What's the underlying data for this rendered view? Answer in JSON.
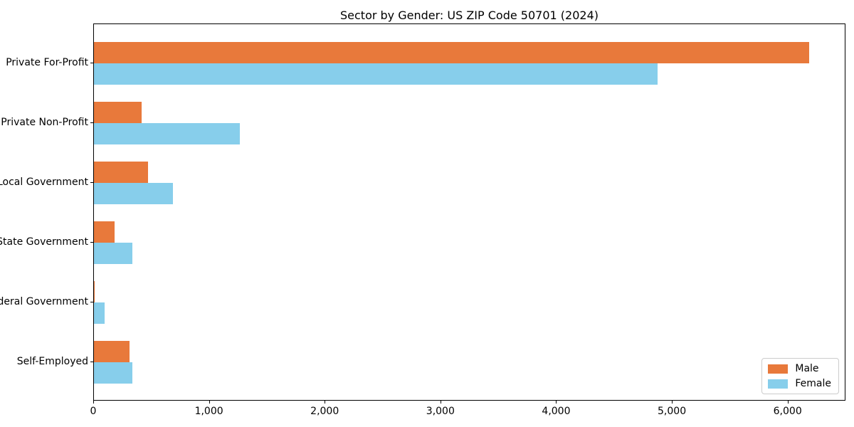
{
  "chart_data": {
    "type": "bar",
    "orientation": "horizontal",
    "title": "Sector by Gender: US ZIP Code 50701 (2024)",
    "categories": [
      "Private For-Profit",
      "Private Non-Profit",
      "Local Government",
      "State Government",
      "Federal Government",
      "Self-Employed"
    ],
    "series": [
      {
        "name": "Male",
        "color": "#e8793b",
        "values": [
          6180,
          415,
          470,
          180,
          8,
          310
        ]
      },
      {
        "name": "Female",
        "color": "#87ceeb",
        "values": [
          4870,
          1260,
          680,
          335,
          90,
          330
        ]
      }
    ],
    "xlabel": "",
    "ylabel": "",
    "xlim": [
      0,
      6500
    ],
    "x_ticks": [
      0,
      1000,
      2000,
      3000,
      4000,
      5000,
      6000
    ],
    "x_tick_labels": [
      "0",
      "1,000",
      "2,000",
      "3,000",
      "4,000",
      "5,000",
      "6,000"
    ],
    "grid": false,
    "legend_position": "lower right",
    "plot_border_color": "#000000",
    "background_color": "#ffffff"
  }
}
